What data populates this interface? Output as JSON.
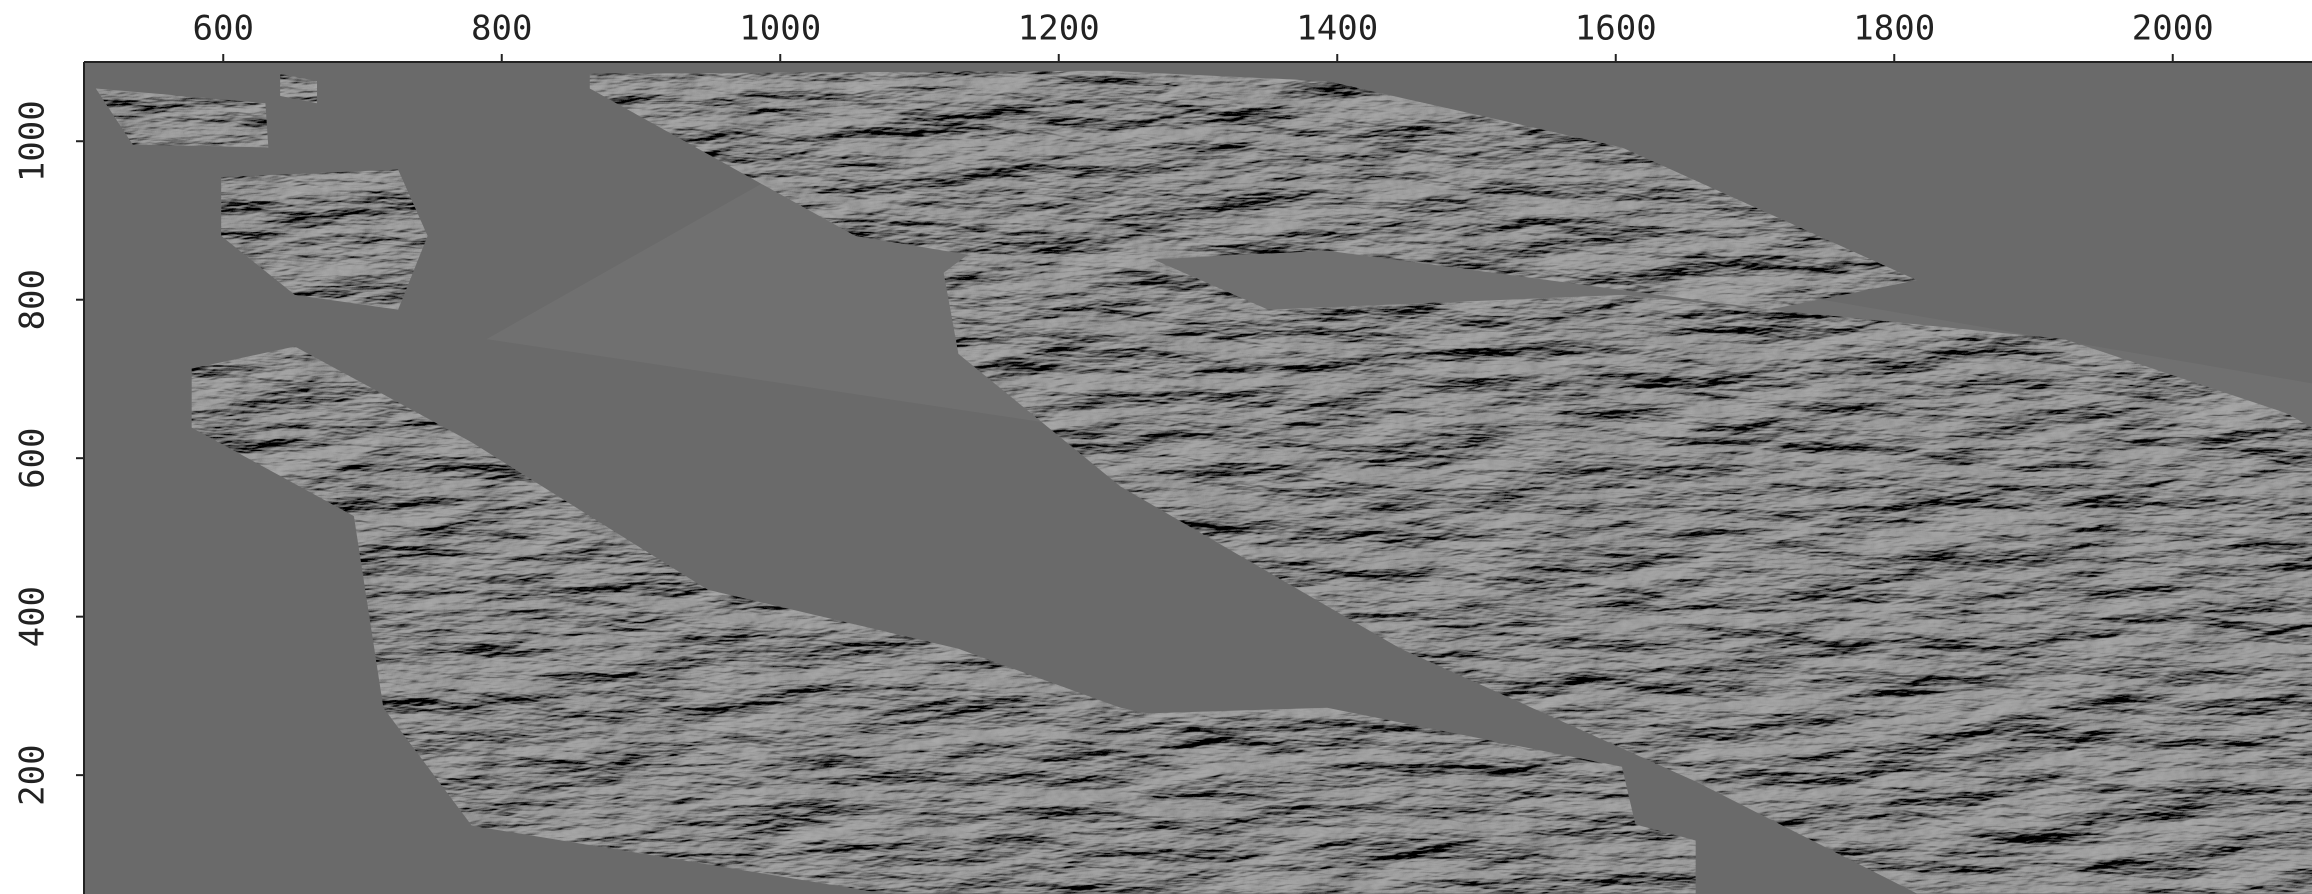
{
  "chart_data": {
    "type": "image",
    "xlim": [
      500,
      2100
    ],
    "xticks": [
      600,
      800,
      1000,
      1200,
      1400,
      1600,
      1800,
      2000
    ],
    "ylim": [
      50,
      1100
    ],
    "yticks": [
      200,
      400,
      600,
      800,
      1000
    ]
  }
}
